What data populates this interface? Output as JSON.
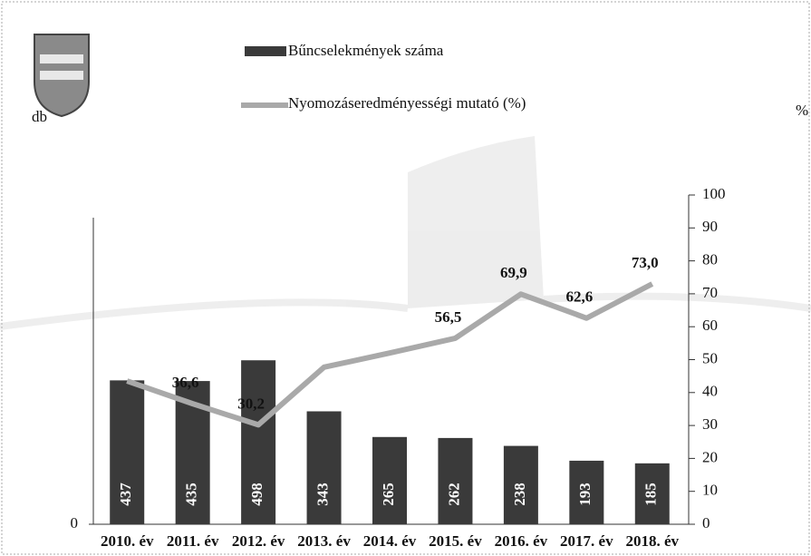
{
  "chart_data": {
    "type": "combo",
    "categories": [
      "2010. év",
      "2011. év",
      "2012. év",
      "2013. év",
      "2014. év",
      "2015. év",
      "2016. év",
      "2017. év",
      "2018. év"
    ],
    "series": [
      {
        "name": "Bűncselekmények száma",
        "type": "bar",
        "color": "#3a3a3a",
        "values": [
          437,
          435,
          498,
          343,
          265,
          262,
          238,
          193,
          185
        ]
      },
      {
        "name": "Nyomozáseredményességi mutató (%)",
        "type": "line",
        "axis": "y2",
        "color": "#a9a9a9",
        "values": [
          43.5,
          36.6,
          30.2,
          47.7,
          52,
          56.5,
          69.9,
          62.6,
          73.0
        ],
        "value_labels": [
          null,
          "36,6",
          "30,2",
          null,
          null,
          "56,5",
          "69,9",
          "62,6",
          "73,0"
        ]
      }
    ],
    "ylabel": "db",
    "y2label": "%",
    "ylim": [
      0,
      1000
    ],
    "yticks": [
      0
    ],
    "y2lim": [
      0,
      100
    ],
    "y2ticks": [
      0,
      10,
      20,
      30,
      40,
      50,
      60,
      70,
      80,
      90,
      100
    ]
  }
}
